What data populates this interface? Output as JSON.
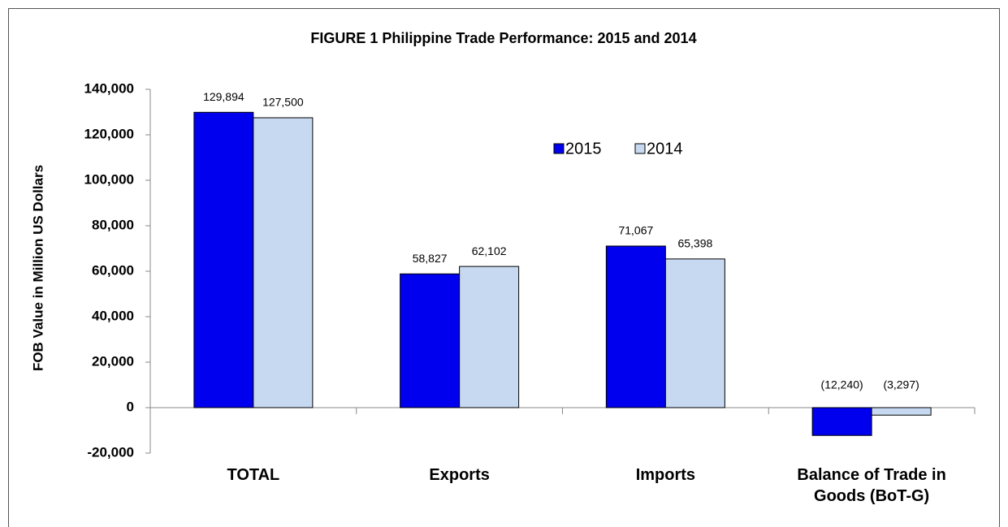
{
  "chart_data": {
    "type": "bar",
    "title": "FIGURE 1  Philippine Trade Performance: 2015 and 2014",
    "y_label": "FOB Value in Million US Dollars",
    "categories": [
      "TOTAL",
      "Exports",
      "Imports",
      "Balance of Trade in Goods (BoT-G)"
    ],
    "series": [
      {
        "name": "2015",
        "color": "#0000ee",
        "values": [
          129894,
          58827,
          71067,
          -12240
        ],
        "value_labels": [
          "129,894",
          "58,827",
          "71,067",
          "(12,240)"
        ]
      },
      {
        "name": "2014",
        "color": "#c6d9f1",
        "values": [
          127500,
          62102,
          65398,
          -3297
        ],
        "value_labels": [
          "127,500",
          "62,102",
          "65,398",
          "(3,297)"
        ]
      }
    ],
    "ylim": [
      -20000,
      140000
    ],
    "yticks": [
      {
        "value": -20000,
        "label": "-20,000"
      },
      0,
      {
        "value": 20000,
        "label": "20,000"
      },
      {
        "value": 40000,
        "label": "40,000"
      },
      {
        "value": 60000,
        "label": "60,000"
      },
      {
        "value": 80000,
        "label": "80,000"
      },
      {
        "value": 100000,
        "label": "100,000"
      },
      {
        "value": 120000,
        "label": "120,000"
      },
      {
        "value": 140000,
        "label": "140,000"
      }
    ],
    "grid": false,
    "legend": "top-center"
  }
}
